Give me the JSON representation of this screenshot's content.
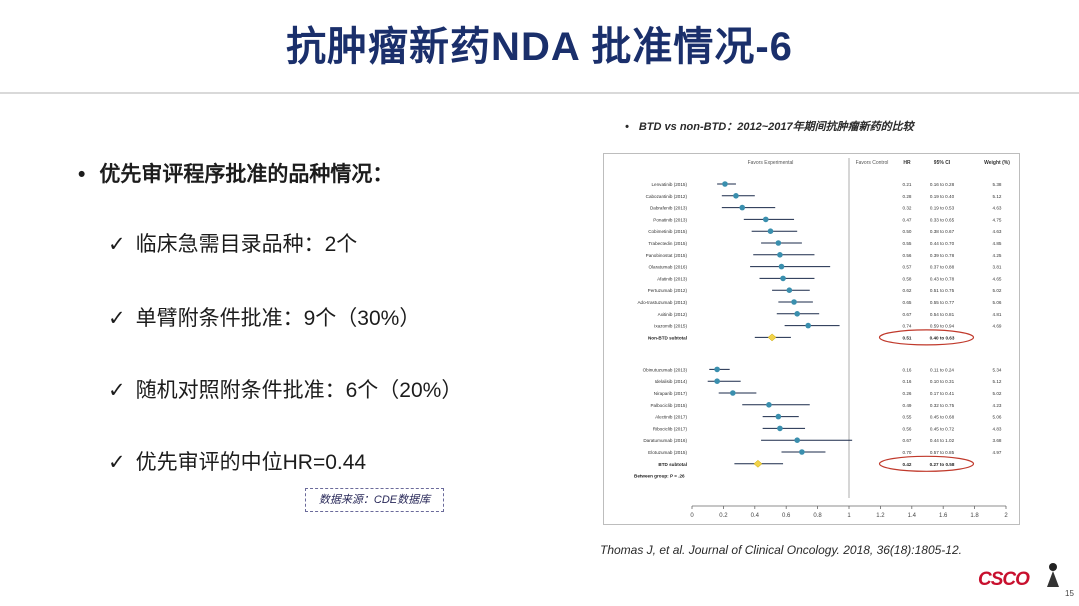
{
  "slide": {
    "title": "抗肿瘤新药NDA 批准情况-6",
    "bullet_main": "优先审评程序批准的品种情况：",
    "bullet_dot": "•",
    "check_mark": "✓",
    "checks": [
      "临床急需目录品种：2个",
      "单臂附条件批准：9个（30%）",
      "随机对照附条件批准：6个（20%）",
      "优先审评的中位HR=0.44"
    ],
    "data_source": "数据来源：CDE数据库",
    "chart_caption": "BTD vs non-BTD：2012~2017年期间抗肿瘤新药的比较",
    "citation": "Thomas J, et al. Journal of Clinical Oncology. 2018, 36(18):1805-12.",
    "logo_text": "CSCO",
    "page_number": "15"
  },
  "chart_data": {
    "type": "forest",
    "header_left": "Favors Experimental",
    "header_right": "Favors Control",
    "columns": [
      "HR",
      "95% CI",
      "Weight (%)"
    ],
    "x_ticks": [
      "0",
      "0.2",
      "0.4",
      "0.6",
      "0.8",
      "1",
      "1.2",
      "1.4",
      "1.6",
      "1.8",
      "2"
    ],
    "xlim": [
      0,
      2
    ],
    "null_line": 1,
    "groups": [
      {
        "rows": [
          {
            "label": "Lenvatinib (2015)",
            "hr": 0.21,
            "lo": 0.16,
            "hi": 0.28,
            "ci": "0.16 to 0.28",
            "w": "5.38"
          },
          {
            "label": "Cabozantinib (2012)",
            "hr": 0.28,
            "lo": 0.19,
            "hi": 0.4,
            "ci": "0.19 to 0.40",
            "w": "5.12"
          },
          {
            "label": "Dabrafenib (2013)",
            "hr": 0.32,
            "lo": 0.19,
            "hi": 0.53,
            "ci": "0.19 to 0.53",
            "w": "4.63"
          },
          {
            "label": "Ponatinib (2013)",
            "hr": 0.47,
            "lo": 0.33,
            "hi": 0.65,
            "ci": "0.33 to 0.65",
            "w": "4.75"
          },
          {
            "label": "Cobimetinib (2015)",
            "hr": 0.5,
            "lo": 0.38,
            "hi": 0.67,
            "ci": "0.38 to 0.67",
            "w": "4.63"
          },
          {
            "label": "Trabectedin (2015)",
            "hr": 0.55,
            "lo": 0.44,
            "hi": 0.7,
            "ci": "0.44 to 0.70",
            "w": "4.85"
          },
          {
            "label": "Panobinostat (2015)",
            "hr": 0.56,
            "lo": 0.39,
            "hi": 0.78,
            "ci": "0.39 to 0.78",
            "w": "4.25"
          },
          {
            "label": "Olaratumab (2016)",
            "hr": 0.57,
            "lo": 0.37,
            "hi": 0.88,
            "ci": "0.37 to 0.88",
            "w": "3.81"
          },
          {
            "label": "Afatinib (2013)",
            "hr": 0.58,
            "lo": 0.43,
            "hi": 0.78,
            "ci": "0.43 to 0.78",
            "w": "4.65"
          },
          {
            "label": "Pertuzumab (2012)",
            "hr": 0.62,
            "lo": 0.51,
            "hi": 0.75,
            "ci": "0.51 to 0.75",
            "w": "5.02"
          },
          {
            "label": "Ado-trastuzumab (2013)",
            "hr": 0.65,
            "lo": 0.55,
            "hi": 0.77,
            "ci": "0.55 to 0.77",
            "w": "5.06"
          },
          {
            "label": "Axitinib (2012)",
            "hr": 0.67,
            "lo": 0.54,
            "hi": 0.81,
            "ci": "0.54 to 0.81",
            "w": "4.81"
          },
          {
            "label": "Ixazomib (2015)",
            "hr": 0.74,
            "lo": 0.59,
            "hi": 0.94,
            "ci": "0.59 to 0.94",
            "w": "4.69"
          }
        ],
        "subtotal": {
          "label": "Non-BTD subtotal",
          "hr": 0.51,
          "lo": 0.4,
          "hi": 0.63,
          "ci": "0.40 to 0.63"
        }
      },
      {
        "rows": [
          {
            "label": "Obinutuzumab (2013)",
            "hr": 0.16,
            "lo": 0.11,
            "hi": 0.24,
            "ci": "0.11 to 0.24",
            "w": "5.34"
          },
          {
            "label": "Idelalisib (2014)",
            "hr": 0.16,
            "lo": 0.1,
            "hi": 0.31,
            "ci": "0.10 to 0.31",
            "w": "5.12"
          },
          {
            "label": "Niraparib (2017)",
            "hr": 0.26,
            "lo": 0.17,
            "hi": 0.41,
            "ci": "0.17 to 0.41",
            "w": "5.02"
          },
          {
            "label": "Palbociclib (2015)",
            "hr": 0.49,
            "lo": 0.32,
            "hi": 0.75,
            "ci": "0.32 to 0.75",
            "w": "4.23"
          },
          {
            "label": "Alectinib (2017)",
            "hr": 0.55,
            "lo": 0.45,
            "hi": 0.68,
            "ci": "0.45 to 0.68",
            "w": "5.06"
          },
          {
            "label": "Ribociclib (2017)",
            "hr": 0.56,
            "lo": 0.45,
            "hi": 0.72,
            "ci": "0.45 to 0.72",
            "w": "4.83"
          },
          {
            "label": "Daratumumab (2016)",
            "hr": 0.67,
            "lo": 0.44,
            "hi": 1.02,
            "ci": "0.44 to 1.02",
            "w": "3.68"
          },
          {
            "label": "Elotuzumab (2015)",
            "hr": 0.7,
            "lo": 0.57,
            "hi": 0.85,
            "ci": "0.57 to 0.85",
            "w": "4.97"
          }
        ],
        "subtotal": {
          "label": "BTD subtotal",
          "hr": 0.42,
          "lo": 0.27,
          "hi": 0.58,
          "ci": "0.27 to 0.58"
        }
      }
    ],
    "between_group": "Between group: P = .26",
    "colors": {
      "point": "#3a8fae",
      "subtotal": "#f2d34a",
      "line": "#1a2a4a",
      "highlight": "#c0392b"
    }
  }
}
